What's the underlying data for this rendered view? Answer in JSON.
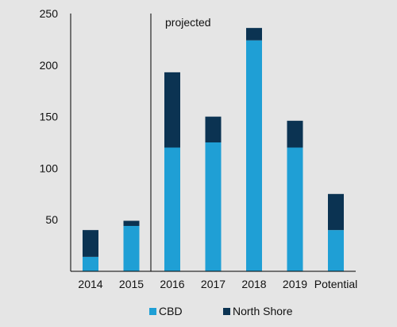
{
  "chart_data": {
    "type": "bar",
    "stacked": true,
    "categories": [
      "2014",
      "2015",
      "2016",
      "2017",
      "2018",
      "2019",
      "Potential"
    ],
    "series": [
      {
        "name": "CBD",
        "color": "#1f9fd5",
        "values": [
          14,
          44,
          120,
          125,
          224,
          120,
          40
        ]
      },
      {
        "name": "North Shore",
        "color": "#0b3352",
        "values": [
          26,
          5,
          73,
          25,
          12,
          26,
          35
        ]
      }
    ],
    "yticks": [
      50,
      100,
      150,
      200,
      250
    ],
    "ylim": [
      0,
      250
    ],
    "title": "",
    "xlabel": "",
    "ylabel": "",
    "annotation": {
      "text": "projected"
    },
    "divider_after_category": "2015",
    "grid": false,
    "legend_position": "bottom"
  }
}
